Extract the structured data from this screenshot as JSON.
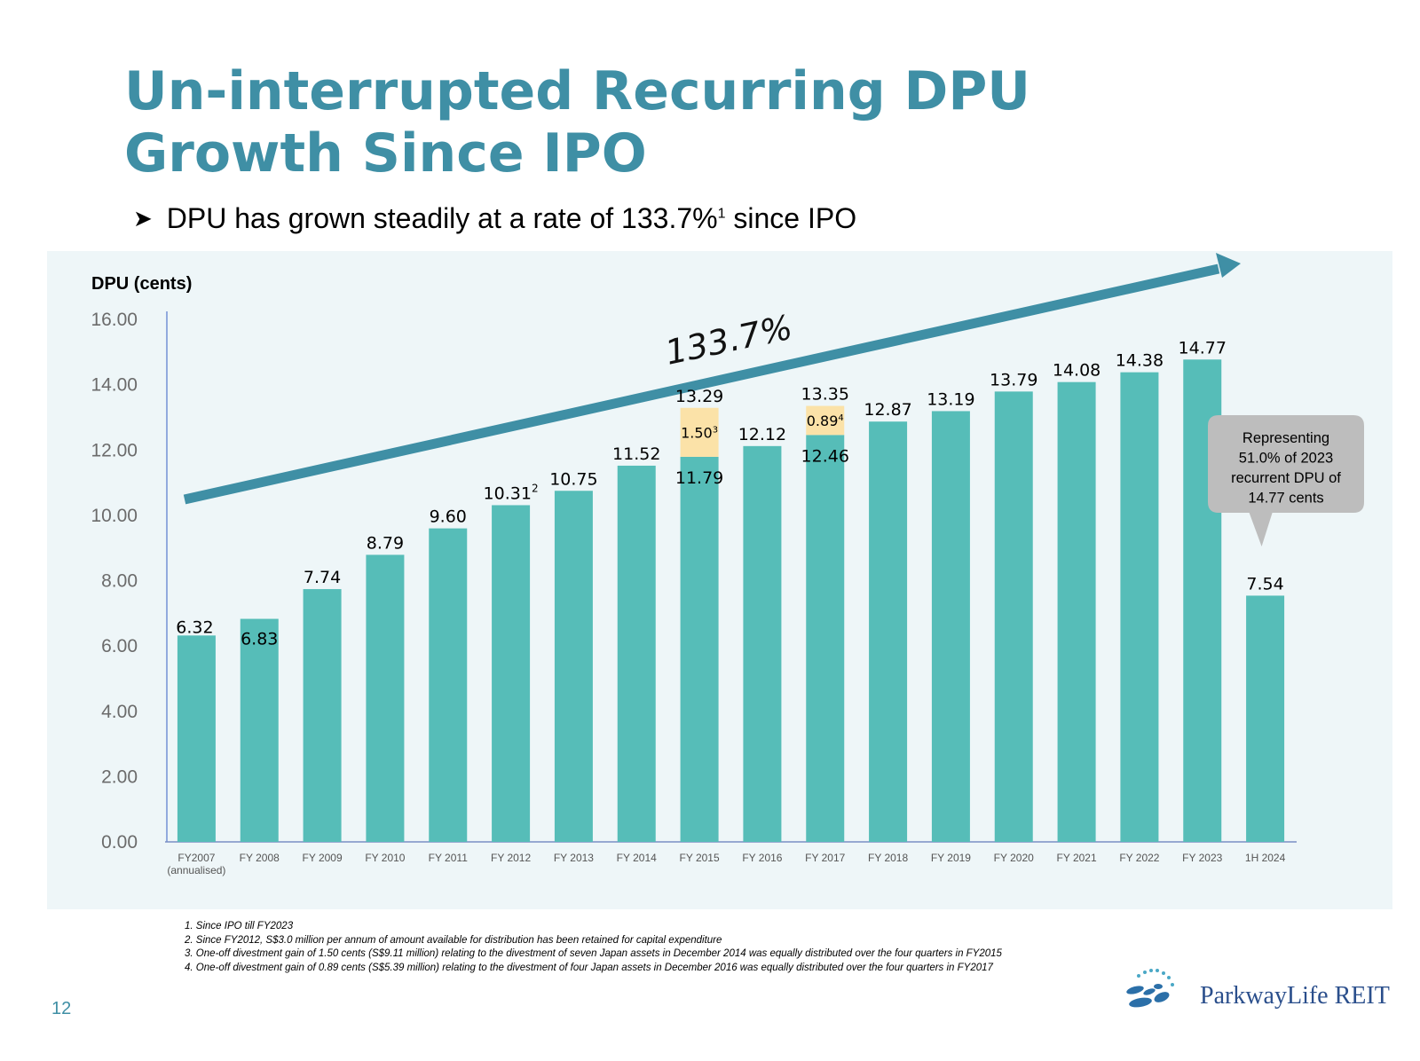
{
  "title_line1": "Un-interrupted Recurring DPU",
  "title_line2": "Growth Since IPO",
  "bullet": {
    "icon": "arrow-bullet-icon",
    "text": "DPU has grown steadily at a rate of 133.7%",
    "sup": "1",
    "text_after": " since IPO"
  },
  "chart_data": {
    "type": "bar",
    "stacked": true,
    "ylabel": "DPU (cents)",
    "ylim": [
      0,
      16
    ],
    "yticks": [
      "0.00",
      "2.00",
      "4.00",
      "6.00",
      "8.00",
      "10.00",
      "12.00",
      "14.00",
      "16.00"
    ],
    "categories": [
      "FY2007",
      "FY 2008",
      "FY 2009",
      "FY 2010",
      "FY 2011",
      "FY 2012",
      "FY 2013",
      "FY 2014",
      "FY 2015",
      "FY 2016",
      "FY 2017",
      "FY 2018",
      "FY 2019",
      "FY 2020",
      "FY 2021",
      "FY 2022",
      "FY 2023",
      "1H 2024"
    ],
    "category_sublabels": [
      "(annualised)",
      "",
      "",
      "",
      "",
      "",
      "",
      "",
      "",
      "",
      "",
      "",
      "",
      "",
      "",
      "",
      "",
      ""
    ],
    "series": [
      {
        "values": [
          6.32,
          6.83,
          7.74,
          8.79,
          9.6,
          10.31,
          10.75,
          11.52,
          11.79,
          12.12,
          12.46,
          12.87,
          13.19,
          13.79,
          14.08,
          14.38,
          14.77,
          7.54
        ],
        "color": "#56bdb8"
      },
      {
        "values": [
          0,
          0,
          0,
          0,
          0,
          0,
          0,
          0,
          1.5,
          0,
          0.89,
          0,
          0,
          0,
          0,
          0,
          0,
          0
        ],
        "color": "#fbe2a8"
      }
    ],
    "bar_labels": [
      "6.32",
      "6.83",
      "7.74",
      "8.79",
      "9.60",
      "10.31",
      "10.75",
      "11.52",
      "13.29",
      "12.12",
      "13.35",
      "12.87",
      "13.19",
      "13.79",
      "14.08",
      "14.38",
      "14.77",
      "7.54"
    ],
    "bar_label_sups": [
      "",
      "",
      "",
      "",
      "",
      "2",
      "",
      "",
      "",
      "",
      "",
      "",
      "",
      "",
      "",
      "",
      "",
      ""
    ],
    "segment_labels": [
      {
        "category": "FY 2015",
        "base_label": "11.79",
        "top_label": "1.50",
        "top_sup": "3"
      },
      {
        "category": "FY 2017",
        "base_label": "12.46",
        "top_label": "0.89",
        "top_sup": "4"
      }
    ],
    "trend_annotation": "133.7%",
    "callout": {
      "category": "1H 2024",
      "text": [
        "Representing",
        "51.0% of 2023",
        "recurrent DPU of",
        "14.77 cents"
      ]
    },
    "grid": false,
    "legend": "none"
  },
  "colors": {
    "title": "#3f8fa5",
    "bar": "#56bdb8",
    "gain": "#fbe2a8",
    "trend_arrow": "#3f8fa5",
    "panel": "#eef6f8",
    "callout": "#bdbdbd"
  },
  "footnotes": [
    "1. Since IPO till FY2023",
    "2. Since FY2012, S$3.0 million per annum of amount available for distribution has been retained for capital expenditure",
    "3. One-off divestment gain of 1.50 cents (S$9.11 million) relating to the divestment of seven Japan assets in December 2014 was equally distributed over the four quarters in FY2015",
    "4. One-off divestment gain of 0.89 cents (S$5.39 million) relating to the divestment of four Japan assets in December 2016 was equally distributed over the four quarters in FY2017"
  ],
  "page_number": "12",
  "logo": {
    "text": "ParkwayLife REIT",
    "icon": "parkwaylife-logo-icon"
  }
}
